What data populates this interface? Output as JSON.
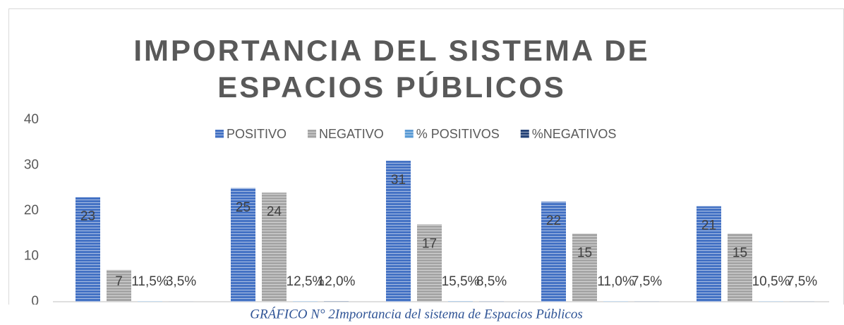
{
  "chart_data": {
    "type": "bar",
    "title": [
      "IMPORTANCIA DEL SISTEMA DE",
      "ESPACIOS PÚBLICOS"
    ],
    "caption": "GRÁFICO N° 2Importancia del sistema de Espacios Públicos",
    "categories": [
      null,
      null,
      null,
      null,
      null
    ],
    "series": [
      {
        "name": "POSITIVO",
        "color": "#4472c4",
        "values": [
          23,
          25,
          31,
          22,
          21
        ]
      },
      {
        "name": "NEGATIVO",
        "color": "#a5a5a5",
        "values": [
          7,
          24,
          17,
          15,
          15
        ]
      },
      {
        "name": "% POSITIVOS",
        "color": "#5b9bd5",
        "values": [
          0.115,
          0.125,
          0.155,
          0.11,
          0.105
        ],
        "value_labels": [
          "11,5%",
          "12,5%",
          "15,5%",
          "11,0%",
          "10,5%"
        ]
      },
      {
        "name": "%NEGATIVOS",
        "color": "#264478",
        "values": [
          0.035,
          0.12,
          0.085,
          0.075,
          0.075
        ],
        "value_labels": [
          "3,5%",
          "12,0%",
          "8,5%",
          "7,5%",
          "7,5%"
        ]
      }
    ],
    "ylim": [
      0,
      40
    ],
    "yticks": [
      0,
      10,
      20,
      30,
      40
    ],
    "grid": false,
    "legend": "top"
  }
}
